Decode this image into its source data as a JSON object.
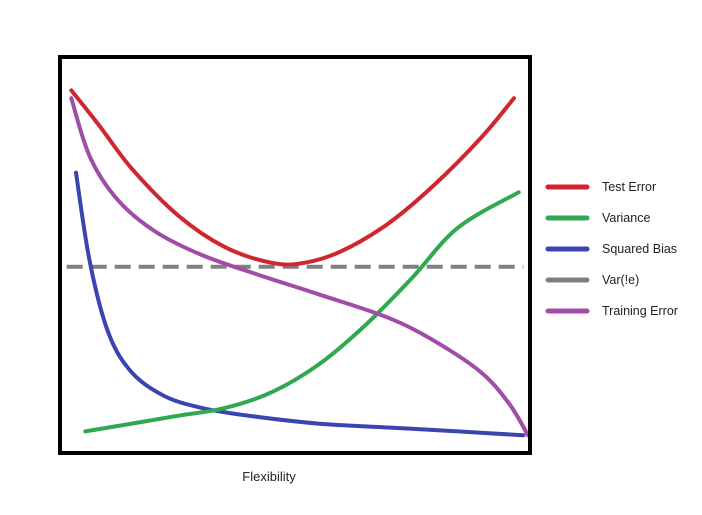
{
  "chart_data": {
    "type": "line",
    "title": "",
    "xlabel": "Flexibility",
    "ylabel": "",
    "xlim": [
      0,
      1
    ],
    "ylim": [
      0,
      1
    ],
    "grid": false,
    "legend_position": "right",
    "series": [
      {
        "name": "Test Error",
        "color": "#d0262f",
        "style": "solid",
        "x": [
          0.02,
          0.08,
          0.15,
          0.25,
          0.35,
          0.45,
          0.52,
          0.6,
          0.7,
          0.8,
          0.9,
          0.97
        ],
        "y": [
          0.92,
          0.83,
          0.72,
          0.6,
          0.52,
          0.48,
          0.48,
          0.51,
          0.58,
          0.68,
          0.8,
          0.9
        ]
      },
      {
        "name": "Variance",
        "color": "#2fa84f",
        "style": "solid",
        "x": [
          0.05,
          0.15,
          0.25,
          0.35,
          0.45,
          0.55,
          0.65,
          0.75,
          0.85,
          0.98
        ],
        "y": [
          0.05,
          0.07,
          0.09,
          0.11,
          0.15,
          0.22,
          0.32,
          0.44,
          0.57,
          0.66
        ]
      },
      {
        "name": "Squared Bias",
        "color": "#3a45b0",
        "style": "solid",
        "x": [
          0.03,
          0.06,
          0.1,
          0.15,
          0.22,
          0.3,
          0.4,
          0.55,
          0.7,
          0.85,
          0.99
        ],
        "y": [
          0.71,
          0.48,
          0.3,
          0.2,
          0.14,
          0.11,
          0.09,
          0.07,
          0.06,
          0.05,
          0.04
        ]
      },
      {
        "name": "Var(!e)",
        "color": "#808080",
        "style": "dashed",
        "x": [
          0.01,
          0.99
        ],
        "y": [
          0.47,
          0.47
        ]
      },
      {
        "name": "Training Error",
        "color": "#a04ca8",
        "style": "solid",
        "x": [
          0.02,
          0.06,
          0.12,
          0.2,
          0.3,
          0.42,
          0.55,
          0.7,
          0.8,
          0.9,
          0.96,
          1.0
        ],
        "y": [
          0.9,
          0.75,
          0.64,
          0.56,
          0.5,
          0.45,
          0.4,
          0.34,
          0.28,
          0.2,
          0.12,
          0.04
        ]
      }
    ]
  }
}
